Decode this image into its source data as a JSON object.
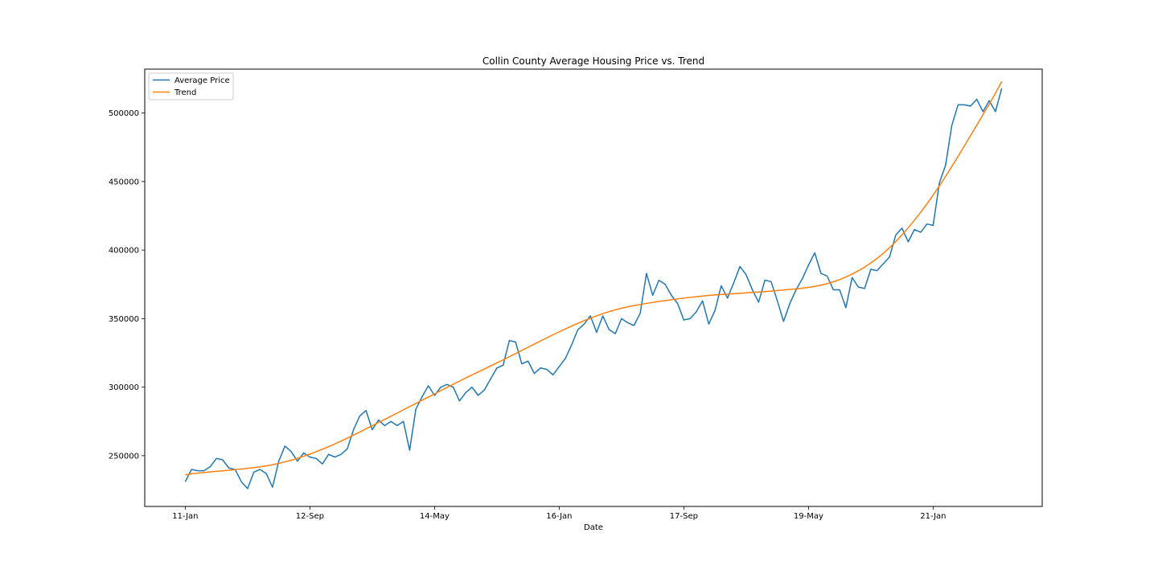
{
  "chart_data": {
    "type": "line",
    "title": "Collin County Average Housing Price vs. Trend",
    "xlabel": "Date",
    "ylabel": "",
    "x_start_label": "11-Jan",
    "x_tick_labels": [
      "11-Jan",
      "12-Sep",
      "14-May",
      "16-Jan",
      "17-Sep",
      "19-May",
      "21-Jan"
    ],
    "x_tick_indices": [
      0,
      20,
      40,
      60,
      80,
      100,
      120
    ],
    "xlim": [
      -6.5,
      137.5
    ],
    "y_tick_values": [
      250000,
      300000,
      350000,
      400000,
      450000,
      500000
    ],
    "ylim": [
      213000,
      532000
    ],
    "grid": false,
    "legend_position": "top-left",
    "series": [
      {
        "name": "Average Price",
        "color": "#1f77b4",
        "values": [
          231000,
          240000,
          239000,
          239000,
          242000,
          248000,
          247000,
          241000,
          240000,
          231000,
          226000,
          238000,
          240000,
          237000,
          227000,
          246000,
          257000,
          253000,
          246000,
          252000,
          249000,
          248000,
          244000,
          251000,
          249000,
          251000,
          255000,
          269000,
          279000,
          283000,
          269000,
          276000,
          272000,
          275000,
          272000,
          275000,
          254000,
          284000,
          293000,
          301000,
          294000,
          300000,
          302000,
          300000,
          290000,
          296000,
          300000,
          294000,
          298000,
          306000,
          314000,
          316000,
          334000,
          333000,
          317000,
          319000,
          310000,
          314000,
          313000,
          309000,
          315000,
          321000,
          331000,
          342000,
          346000,
          352000,
          340000,
          352000,
          342000,
          339000,
          350000,
          347000,
          345000,
          354000,
          383000,
          367000,
          378000,
          375000,
          367000,
          361000,
          349000,
          350000,
          355000,
          363000,
          346000,
          356000,
          374000,
          365000,
          376000,
          388000,
          382000,
          371000,
          362000,
          378000,
          377000,
          363000,
          348000,
          361000,
          371000,
          379000,
          389000,
          398000,
          383000,
          381000,
          371000,
          371000,
          358000,
          380000,
          373000,
          372000,
          386000,
          385000,
          390000,
          395000,
          411000,
          416000,
          406000,
          415000,
          413000,
          419000,
          418000,
          449000,
          462000,
          491000,
          506000,
          506000,
          505000,
          510000,
          501000,
          509000,
          501000,
          518000
        ]
      },
      {
        "name": "Trend",
        "color": "#ff7f0e",
        "values": [
          236000,
          236800,
          237300,
          237700,
          238200,
          238600,
          239000,
          239400,
          239900,
          240300,
          240800,
          241300,
          241900,
          242600,
          243400,
          244400,
          245500,
          246700,
          248100,
          249600,
          251200,
          252900,
          254700,
          256600,
          258600,
          260700,
          262900,
          265100,
          267300,
          269600,
          271900,
          274200,
          276500,
          278800,
          281100,
          283500,
          285800,
          288100,
          290500,
          292800,
          295100,
          297500,
          299800,
          302100,
          304400,
          306700,
          308900,
          311100,
          313300,
          315500,
          317700,
          319900,
          322200,
          324500,
          326800,
          329100,
          331400,
          333700,
          336000,
          338200,
          340400,
          342500,
          344600,
          346600,
          348500,
          350300,
          352000,
          353600,
          355100,
          356400,
          357600,
          358600,
          359500,
          360300,
          361100,
          361800,
          362500,
          363100,
          363800,
          364400,
          365000,
          365500,
          366000,
          366500,
          366900,
          367300,
          367600,
          367900,
          368200,
          368500,
          368800,
          369100,
          369400,
          369700,
          370100,
          370500,
          370900,
          371300,
          371700,
          372200,
          372800,
          373500,
          374400,
          375500,
          376900,
          378500,
          380400,
          382500,
          384900,
          387600,
          390600,
          393900,
          397600,
          401700,
          406200,
          411100,
          416300,
          421800,
          427600,
          433700,
          440100,
          446800,
          453800,
          461000,
          468400,
          475900,
          483500,
          491100,
          498800,
          506500,
          514400,
          523000
        ]
      }
    ]
  }
}
